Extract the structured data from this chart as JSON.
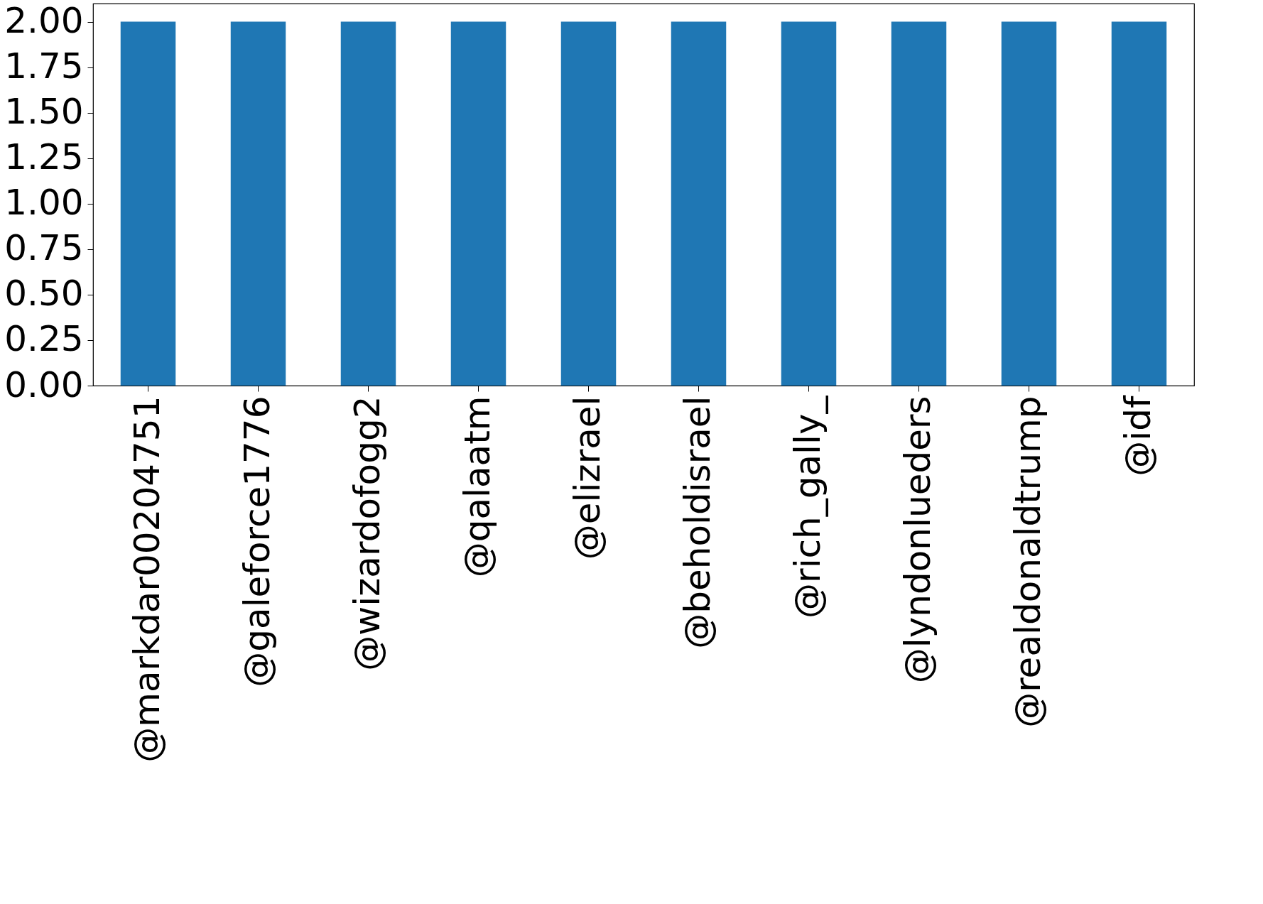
{
  "chart_data": {
    "type": "bar",
    "categories": [
      "@markdar00204751",
      "@galeforce1776",
      "@wizardofogg2",
      "@qalaatm",
      "@elizrael",
      "@beholdisrael",
      "@rich_gally_",
      "@lyndonlueders",
      "@realdonaldtrump",
      "@idf"
    ],
    "values": [
      2,
      2,
      2,
      2,
      2,
      2,
      2,
      2,
      2,
      2
    ],
    "color": "#1f77b4",
    "ylim": [
      0,
      2.1
    ],
    "yticks": [
      {
        "value": 0,
        "label": "0.00"
      },
      {
        "value": 0.25,
        "label": "0.25"
      },
      {
        "value": 0.5,
        "label": "0.50"
      },
      {
        "value": 0.75,
        "label": "0.75"
      },
      {
        "value": 1,
        "label": "1.00"
      },
      {
        "value": 1.25,
        "label": "1.25"
      },
      {
        "value": 1.5,
        "label": "1.50"
      },
      {
        "value": 1.75,
        "label": "1.75"
      },
      {
        "value": 2,
        "label": "2.00"
      }
    ],
    "grid": false
  }
}
